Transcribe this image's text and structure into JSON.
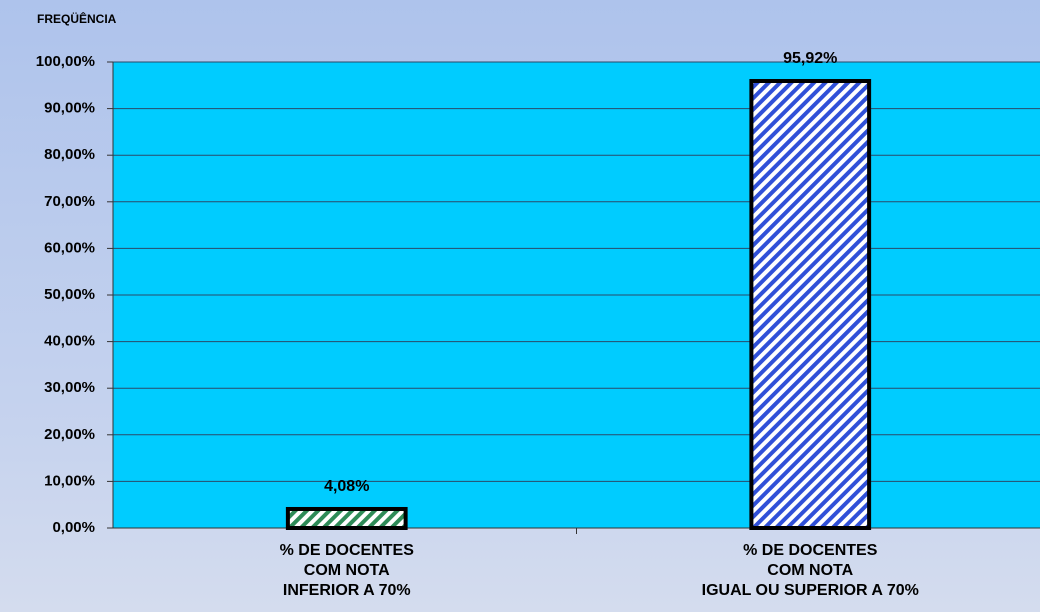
{
  "chart_data": {
    "type": "bar",
    "y_label": "FREQÜÊNCIA",
    "categories": [
      "% DE DOCENTES\nCOM NOTA\nINFERIOR A 70%",
      "% DE DOCENTES\nCOM NOTA\nIGUAL OU SUPERIOR A 70%"
    ],
    "values": [
      4.08,
      95.92
    ],
    "value_labels": [
      "4,08%",
      "95,92%"
    ],
    "colors": [
      "#2e8b57",
      "#3050d8"
    ],
    "ylim": [
      0,
      100
    ],
    "yticks": [
      {
        "value": 0,
        "label": "0,00%"
      },
      {
        "value": 10,
        "label": "10,00%"
      },
      {
        "value": 20,
        "label": "20,00%"
      },
      {
        "value": 30,
        "label": "30,00%"
      },
      {
        "value": 40,
        "label": "40,00%"
      },
      {
        "value": 50,
        "label": "50,00%"
      },
      {
        "value": 60,
        "label": "60,00%"
      },
      {
        "value": 70,
        "label": "70,00%"
      },
      {
        "value": 80,
        "label": "80,00%"
      },
      {
        "value": 90,
        "label": "90,00%"
      },
      {
        "value": 100,
        "label": "100,00%"
      }
    ],
    "grid": true
  }
}
